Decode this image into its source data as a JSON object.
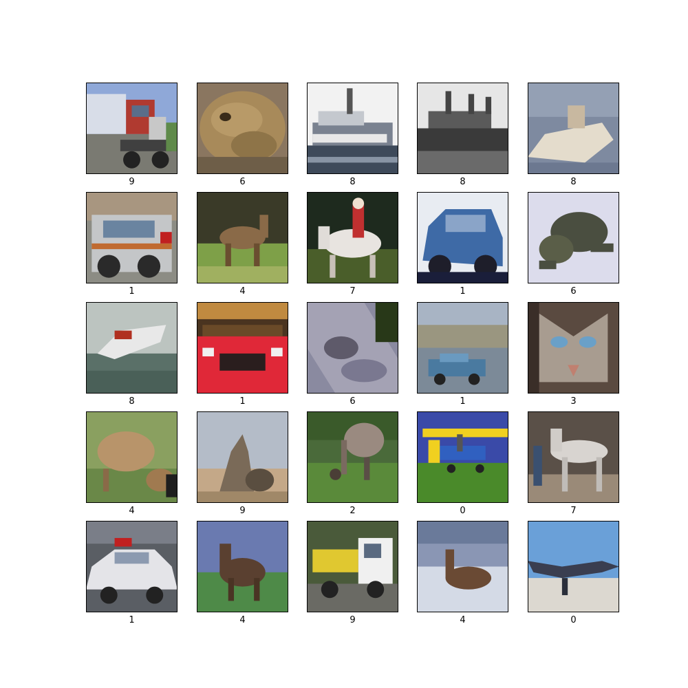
{
  "grid": {
    "rows": 5,
    "cols": 5,
    "panels": [
      {
        "label": "9",
        "content": "truck"
      },
      {
        "label": "6",
        "content": "frog"
      },
      {
        "label": "8",
        "content": "ship"
      },
      {
        "label": "8",
        "content": "ship"
      },
      {
        "label": "8",
        "content": "ship"
      },
      {
        "label": "1",
        "content": "automobile"
      },
      {
        "label": "4",
        "content": "deer"
      },
      {
        "label": "7",
        "content": "horse"
      },
      {
        "label": "1",
        "content": "automobile"
      },
      {
        "label": "6",
        "content": "frog"
      },
      {
        "label": "8",
        "content": "ship"
      },
      {
        "label": "1",
        "content": "automobile"
      },
      {
        "label": "6",
        "content": "frog"
      },
      {
        "label": "1",
        "content": "automobile"
      },
      {
        "label": "3",
        "content": "cat"
      },
      {
        "label": "4",
        "content": "deer"
      },
      {
        "label": "9",
        "content": "truck"
      },
      {
        "label": "2",
        "content": "bird"
      },
      {
        "label": "0",
        "content": "airplane"
      },
      {
        "label": "7",
        "content": "horse"
      },
      {
        "label": "1",
        "content": "automobile"
      },
      {
        "label": "4",
        "content": "deer"
      },
      {
        "label": "9",
        "content": "truck"
      },
      {
        "label": "4",
        "content": "deer"
      },
      {
        "label": "0",
        "content": "airplane"
      }
    ]
  }
}
